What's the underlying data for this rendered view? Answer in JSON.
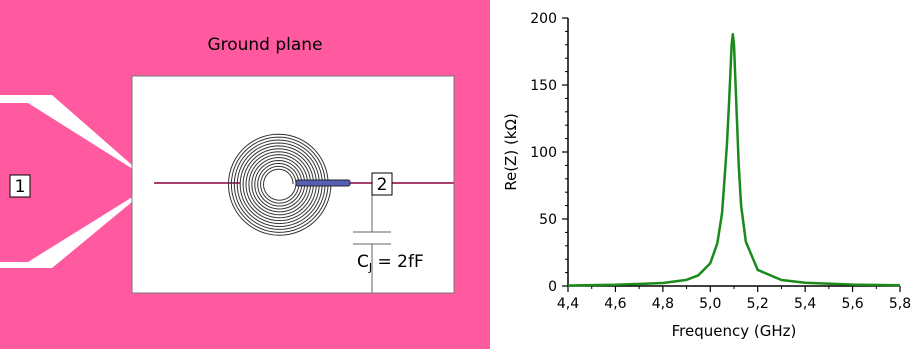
{
  "layout": {
    "ground_plane_label": "Ground plane",
    "port1_label": "1",
    "port2_label": "2",
    "capacitor_symbol": "C",
    "capacitor_subscript": "J",
    "capacitor_value": " = 2fF",
    "colors": {
      "ground": "#ff5aa0",
      "conductor_edge": "#555555",
      "spiral": "#333333",
      "via": "#5560b0",
      "feedline": "#aa4070"
    }
  },
  "chart_data": {
    "type": "line",
    "title": "",
    "xlabel": "Frequency (GHz)",
    "ylabel": "Re(Z) (kΩ)",
    "xlim": [
      4.4,
      5.8
    ],
    "ylim": [
      0,
      200
    ],
    "x_ticks": [
      "4,4",
      "4,6",
      "4,8",
      "5,0",
      "5,2",
      "5,4",
      "5,6",
      "5,8"
    ],
    "y_ticks": [
      "0",
      "50",
      "100",
      "150",
      "200"
    ],
    "grid": false,
    "series": [
      {
        "name": "",
        "color": "#1a8a1a",
        "x": [
          4.4,
          4.6,
          4.8,
          4.9,
          4.95,
          5.0,
          5.03,
          5.05,
          5.07,
          5.08,
          5.09,
          5.095,
          5.1,
          5.11,
          5.12,
          5.13,
          5.15,
          5.2,
          5.3,
          5.4,
          5.6,
          5.8
        ],
        "y": [
          0.4,
          0.9,
          2.2,
          4.6,
          8.0,
          17.0,
          32.0,
          55.0,
          105.0,
          140.0,
          180.0,
          188.0,
          180.0,
          135.0,
          90.0,
          60.0,
          33.0,
          12.0,
          4.5,
          2.4,
          1.0,
          0.6
        ]
      }
    ]
  }
}
